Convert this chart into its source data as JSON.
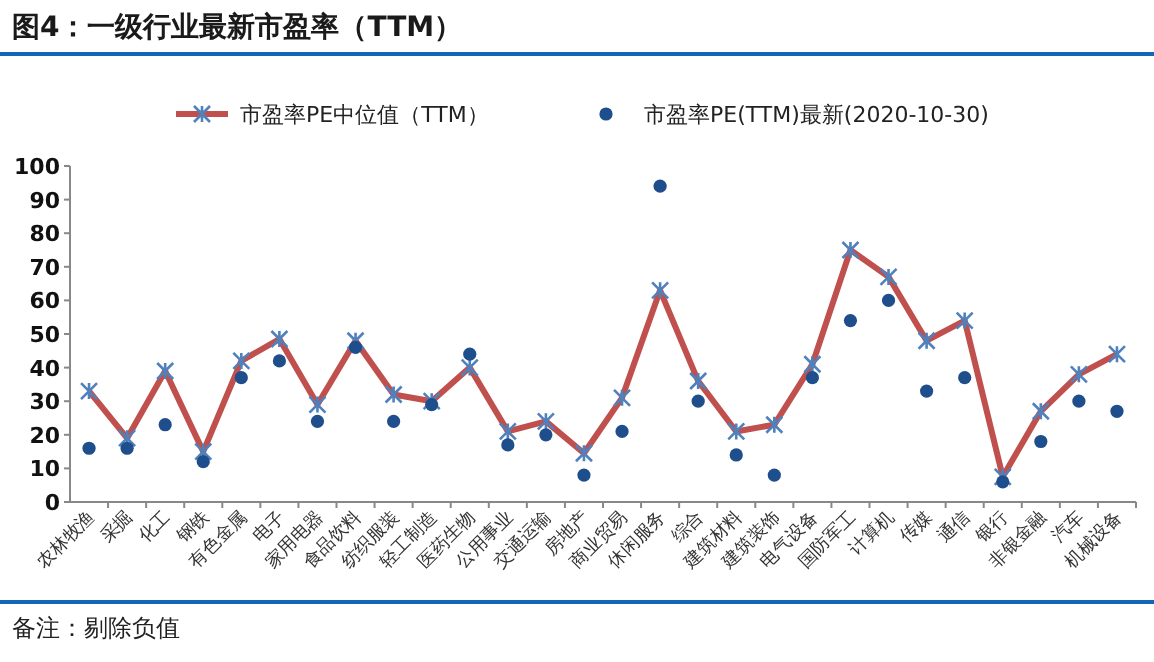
{
  "chart_data": {
    "type": "line",
    "title": "图4：一级行业最新市盈率（TTM）",
    "categories": [
      "农林牧渔",
      "采掘",
      "化工",
      "钢铁",
      "有色金属",
      "电子",
      "家用电器",
      "食品饮料",
      "纺织服装",
      "轻工制造",
      "医药生物",
      "公用事业",
      "交通运输",
      "房地产",
      "商业贸易",
      "休闲服务",
      "综合",
      "建筑材料",
      "建筑装饰",
      "电气设备",
      "国防军工",
      "计算机",
      "传媒",
      "通信",
      "银行",
      "非银金融",
      "汽车",
      "机械设备"
    ],
    "series": [
      {
        "name": "市盈率PE中位值（TTM）",
        "color": "#c0504d",
        "marker": "cross",
        "values": [
          33,
          19,
          39,
          15,
          42,
          48.5,
          29,
          48,
          32,
          30,
          40,
          21,
          24,
          14.5,
          31,
          63,
          36,
          21,
          23,
          41,
          75,
          67,
          48,
          54,
          7.5,
          27,
          38,
          44
        ]
      },
      {
        "name": "市盈率PE(TTM)最新(2020-10-30)",
        "type": "scatter",
        "color": "#1f4e8c",
        "marker": "circle",
        "values": [
          16,
          16,
          23,
          12,
          37,
          42,
          24,
          46,
          24,
          29,
          44,
          17,
          20,
          8,
          21,
          94,
          30,
          14,
          8,
          37,
          54,
          60,
          33,
          37,
          6,
          18,
          30,
          27
        ]
      }
    ],
    "ylim": [
      0,
      100
    ],
    "yticks": [
      0,
      10,
      20,
      30,
      40,
      50,
      60,
      70,
      80,
      90,
      100
    ],
    "grid": false,
    "legend": "top",
    "annotations": [
      "备注：剔除负值"
    ]
  }
}
